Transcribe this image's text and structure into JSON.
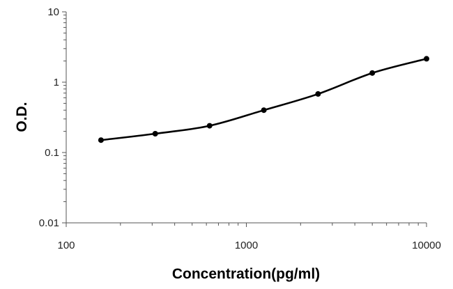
{
  "chart_data": {
    "type": "line",
    "title": "",
    "xlabel": "Concentration(pg/ml)",
    "ylabel": "O.D.",
    "x_scale": "log",
    "y_scale": "log",
    "xlim": [
      100,
      10000
    ],
    "ylim": [
      0.01,
      10
    ],
    "grid": false,
    "x_ticks": [
      {
        "value": 100,
        "label": "100"
      },
      {
        "value": 1000,
        "label": "1000"
      },
      {
        "value": 10000,
        "label": "10000"
      }
    ],
    "y_ticks": [
      {
        "value": 0.01,
        "label": "0.01"
      },
      {
        "value": 0.1,
        "label": "0.1"
      },
      {
        "value": 1,
        "label": "1"
      },
      {
        "value": 10,
        "label": "10"
      }
    ],
    "series": [
      {
        "color": "#000000",
        "marker": "circle",
        "smooth": true,
        "x": [
          156,
          312,
          625,
          1250,
          2500,
          5000,
          10000
        ],
        "y": [
          0.15,
          0.185,
          0.24,
          0.4,
          0.68,
          1.35,
          2.15
        ]
      }
    ]
  }
}
